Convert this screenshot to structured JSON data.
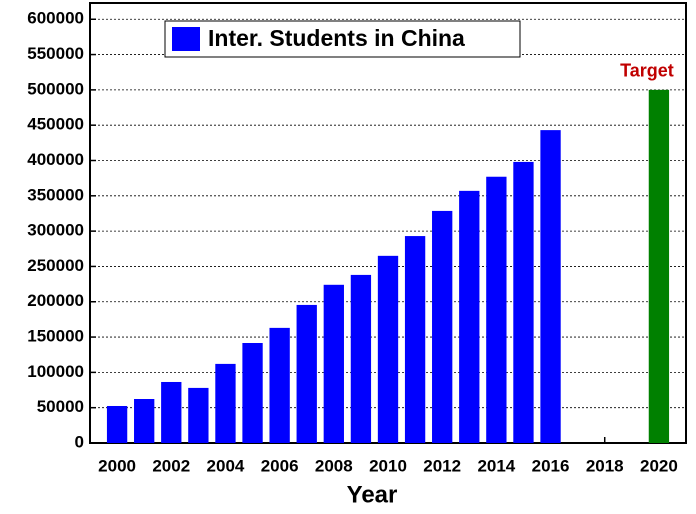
{
  "chart_data": {
    "type": "bar",
    "x_label": "Year",
    "x": [
      2000,
      2001,
      2002,
      2003,
      2004,
      2005,
      2006,
      2007,
      2008,
      2009,
      2010,
      2011,
      2012,
      2013,
      2014,
      2015,
      2016,
      2017,
      2018,
      2019,
      2020
    ],
    "series": [
      {
        "name": "Inter. Students in China",
        "color": "#0000ff",
        "values": [
          52400,
          62300,
          86400,
          78000,
          112000,
          141600,
          163000,
          195500,
          224000,
          238000,
          265000,
          293000,
          328600,
          357000,
          377000,
          398000,
          443000,
          null,
          null,
          null,
          null
        ]
      }
    ],
    "annotations": [
      {
        "text": "Target",
        "x": 2020,
        "value": 500000,
        "color": "#008000",
        "text_color": "#c00000"
      }
    ],
    "xlim": [
      1999,
      2021
    ],
    "xticks": [
      2000,
      2002,
      2004,
      2006,
      2008,
      2010,
      2012,
      2014,
      2016,
      2018,
      2020
    ],
    "ylim": [
      0,
      623000
    ],
    "yticks": [
      0,
      50000,
      100000,
      150000,
      200000,
      250000,
      300000,
      350000,
      400000,
      450000,
      500000,
      550000,
      600000
    ],
    "grid": true
  }
}
